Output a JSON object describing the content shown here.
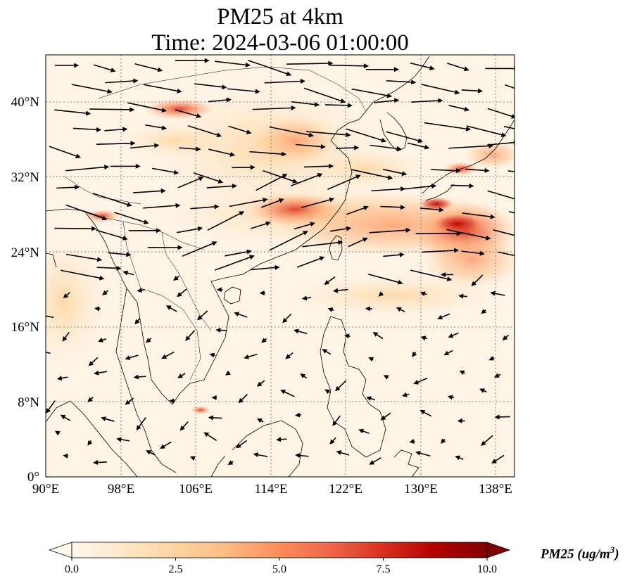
{
  "title": {
    "line1": "PM25 at 4km",
    "line2": "Time: 2024-03-06 01:00:00"
  },
  "map": {
    "projection": "PlateCarree",
    "lon_range": [
      90,
      140
    ],
    "lat_range": [
      0,
      45
    ],
    "x_ticks": [
      "90°E",
      "98°E",
      "106°E",
      "114°E",
      "122°E",
      "130°E",
      "138°E"
    ],
    "x_tick_values": [
      90,
      98,
      106,
      114,
      122,
      130,
      138
    ],
    "y_ticks": [
      "0°",
      "8°N",
      "16°N",
      "24°N",
      "32°N",
      "40°N"
    ],
    "y_tick_values": [
      0,
      8,
      16,
      24,
      32,
      40
    ],
    "gridlines": "dotted",
    "layers": [
      "coastlines",
      "country-borders",
      "pm25-field",
      "wind-vectors"
    ]
  },
  "colorbar": {
    "colormap": "OrRd",
    "range": [
      0.0,
      10.0
    ],
    "extend": "both",
    "ticks": [
      "0.0",
      "2.5",
      "5.0",
      "7.5",
      "10.0"
    ],
    "tick_values": [
      0,
      2.5,
      5.0,
      7.5,
      10.0
    ],
    "label_main": "PM25 (ug/m",
    "label_sup": "3",
    "label_end": ")",
    "colors": [
      "#fff7ec",
      "#fee8c8",
      "#fdd49e",
      "#fdbb84",
      "#fc8d59",
      "#ef6548",
      "#d7301f",
      "#b30000",
      "#7f0000"
    ]
  }
}
